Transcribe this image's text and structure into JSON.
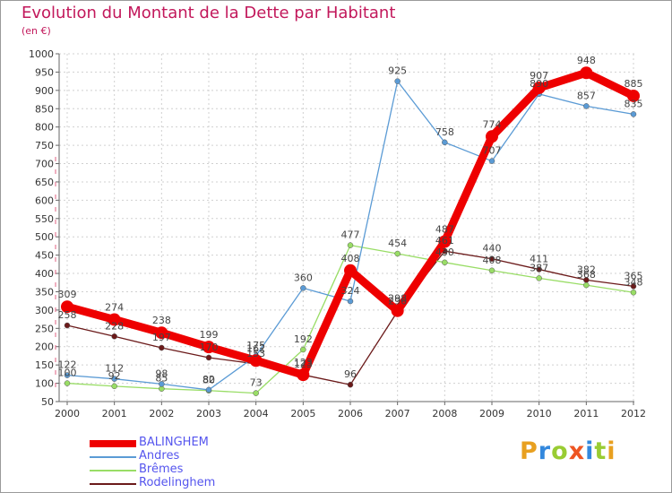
{
  "chart_data": {
    "type": "line",
    "title": "Evolution du Montant de la Dette par Habitant",
    "subtitle": "(en €)",
    "x": [
      "2000",
      "2001",
      "2002",
      "2003",
      "2004",
      "2005",
      "2006",
      "2007",
      "2008",
      "2009",
      "2010",
      "2011",
      "2012"
    ],
    "ylim": [
      50,
      1000
    ],
    "yticks": [
      50,
      100,
      150,
      200,
      250,
      300,
      350,
      400,
      450,
      500,
      550,
      600,
      650,
      700,
      750,
      800,
      850,
      900,
      950,
      1000
    ],
    "legend_position": "bottom-left",
    "series": [
      {
        "name": "Rodelinghem",
        "color": "#6b1a1a",
        "values": [
          258,
          228,
          197,
          170,
          153,
          123,
          96,
          296,
          461,
          440,
          411,
          382,
          365
        ]
      },
      {
        "name": "Brêmes",
        "color": "#99dd66",
        "values": [
          100,
          92,
          85,
          80,
          73,
          192,
          477,
          454,
          430,
          408,
          387,
          368,
          348
        ]
      },
      {
        "name": "Andres",
        "color": "#5b9bd5",
        "values": [
          122,
          112,
          98,
          82,
          175,
          360,
          324,
          925,
          758,
          707,
          890,
          857,
          835
        ]
      },
      {
        "name": "BALINGHEM",
        "color": "#ee0000",
        "values": [
          309,
          274,
          238,
          199,
          162,
          123,
          408,
          298,
          487,
          774,
          907,
          948,
          885
        ]
      }
    ]
  },
  "logo": {
    "letters": [
      {
        "text": "P",
        "color": "#e8a020"
      },
      {
        "text": "r",
        "color": "#3388dd"
      },
      {
        "text": "o",
        "color": "#99cc33"
      },
      {
        "text": "x",
        "color": "#ee5522"
      },
      {
        "text": "i",
        "color": "#3388dd"
      },
      {
        "text": "t",
        "color": "#99cc33"
      },
      {
        "text": "i",
        "color": "#e8a020"
      }
    ]
  }
}
